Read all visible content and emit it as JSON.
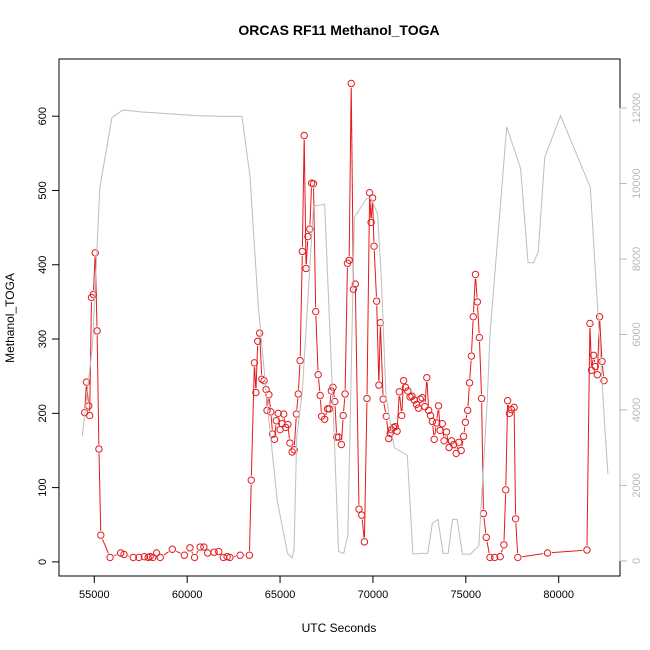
{
  "chart_data": {
    "type": "line",
    "title": "ORCAS RF11 Methanol_TOGA",
    "xlabel": "UTC Seconds",
    "ylabel": "Methanol_TOGA",
    "xlim": [
      53100,
      83300
    ],
    "ylim": [
      -19,
      677
    ],
    "y2lim": [
      -400,
      13300
    ],
    "x_ticks": [
      55000,
      60000,
      65000,
      70000,
      75000,
      80000
    ],
    "y_ticks": [
      0,
      100,
      200,
      300,
      400,
      500,
      600
    ],
    "y2_ticks": [
      0,
      2000,
      4000,
      6000,
      8000,
      10000,
      12000
    ],
    "x_tick_labels": [
      "55000",
      "60000",
      "65000",
      "70000",
      "75000",
      "80000"
    ],
    "y_tick_labels": [
      "0",
      "100",
      "200",
      "300",
      "400",
      "500",
      "600"
    ],
    "y2_tick_labels": [
      "0",
      "2000",
      "4000",
      "6000",
      "8000",
      "10000",
      "12000"
    ],
    "grid": false,
    "series": [
      {
        "color": "#e31a1c",
        "axis": "left",
        "style": "line+circles",
        "points": [
          [
            54480,
            201
          ],
          [
            54580,
            242
          ],
          [
            54700,
            210
          ],
          [
            54750,
            197
          ],
          [
            54850,
            356
          ],
          [
            54950,
            360
          ],
          [
            55050,
            416
          ],
          [
            55150,
            311
          ],
          [
            55250,
            152
          ],
          [
            55350,
            36
          ],
          [
            55850,
            6
          ],
          [
            56420,
            12
          ],
          [
            56600,
            10
          ],
          [
            57100,
            6
          ],
          [
            57400,
            6
          ],
          [
            57700,
            7
          ],
          [
            57900,
            6
          ],
          [
            58000,
            7
          ],
          [
            58150,
            6
          ],
          [
            58350,
            12
          ],
          [
            58550,
            6
          ],
          [
            59200,
            17
          ],
          [
            59850,
            9
          ],
          [
            60150,
            19
          ],
          [
            60400,
            6
          ],
          [
            60700,
            20
          ],
          [
            60900,
            20
          ],
          [
            61100,
            12
          ],
          [
            61450,
            13
          ],
          [
            61700,
            14
          ],
          [
            61950,
            6
          ],
          [
            62150,
            7
          ],
          [
            62300,
            6
          ],
          [
            62850,
            9
          ],
          [
            63350,
            9
          ],
          [
            63450,
            110
          ],
          [
            63620,
            268
          ],
          [
            63700,
            228
          ],
          [
            63800,
            297
          ],
          [
            63900,
            308
          ],
          [
            64020,
            246
          ],
          [
            64140,
            244
          ],
          [
            64250,
            232
          ],
          [
            64300,
            204
          ],
          [
            64400,
            225
          ],
          [
            64500,
            202
          ],
          [
            64600,
            172
          ],
          [
            64700,
            165
          ],
          [
            64800,
            190
          ],
          [
            64900,
            200
          ],
          [
            65000,
            178
          ],
          [
            65100,
            186
          ],
          [
            65200,
            199
          ],
          [
            65300,
            181
          ],
          [
            65420,
            185
          ],
          [
            65530,
            160
          ],
          [
            65650,
            148
          ],
          [
            65760,
            151
          ],
          [
            65880,
            199
          ],
          [
            65980,
            226
          ],
          [
            66080,
            271
          ],
          [
            66200,
            418
          ],
          [
            66300,
            574
          ],
          [
            66400,
            395
          ],
          [
            66500,
            438
          ],
          [
            66600,
            448
          ],
          [
            66700,
            510
          ],
          [
            66800,
            509
          ],
          [
            66920,
            337
          ],
          [
            67050,
            252
          ],
          [
            67160,
            224
          ],
          [
            67240,
            196
          ],
          [
            67400,
            192
          ],
          [
            67560,
            206
          ],
          [
            67650,
            206
          ],
          [
            67760,
            230
          ],
          [
            67850,
            235
          ],
          [
            67950,
            216
          ],
          [
            68050,
            168
          ],
          [
            68150,
            168
          ],
          [
            68300,
            158
          ],
          [
            68400,
            197
          ],
          [
            68500,
            226
          ],
          [
            68630,
            402
          ],
          [
            68720,
            406
          ],
          [
            68830,
            644
          ],
          [
            68950,
            367
          ],
          [
            69050,
            374
          ],
          [
            69250,
            71
          ],
          [
            69400,
            63
          ],
          [
            69540,
            27
          ],
          [
            69680,
            220
          ],
          [
            69820,
            497
          ],
          [
            69900,
            457
          ],
          [
            69980,
            490
          ],
          [
            70060,
            425
          ],
          [
            70200,
            351
          ],
          [
            70320,
            238
          ],
          [
            70400,
            322
          ],
          [
            70550,
            219
          ],
          [
            70720,
            196
          ],
          [
            70850,
            166
          ],
          [
            70930,
            173
          ],
          [
            71000,
            178
          ],
          [
            71100,
            181
          ],
          [
            71200,
            182
          ],
          [
            71300,
            176
          ],
          [
            71420,
            229
          ],
          [
            71550,
            197
          ],
          [
            71650,
            244
          ],
          [
            71750,
            235
          ],
          [
            71880,
            230
          ],
          [
            72000,
            222
          ],
          [
            72100,
            223
          ],
          [
            72230,
            218
          ],
          [
            72350,
            212
          ],
          [
            72450,
            207
          ],
          [
            72550,
            219
          ],
          [
            72650,
            221
          ],
          [
            72800,
            209
          ],
          [
            72900,
            248
          ],
          [
            73000,
            204
          ],
          [
            73100,
            197
          ],
          [
            73200,
            189
          ],
          [
            73300,
            165
          ],
          [
            73420,
            187
          ],
          [
            73530,
            210
          ],
          [
            73620,
            177
          ],
          [
            73730,
            186
          ],
          [
            73830,
            163
          ],
          [
            73960,
            175
          ],
          [
            74100,
            154
          ],
          [
            74230,
            163
          ],
          [
            74350,
            158
          ],
          [
            74480,
            146
          ],
          [
            74620,
            161
          ],
          [
            74750,
            150
          ],
          [
            74880,
            169
          ],
          [
            74980,
            188
          ],
          [
            75100,
            204
          ],
          [
            75200,
            241
          ],
          [
            75300,
            277
          ],
          [
            75400,
            330
          ],
          [
            75520,
            387
          ],
          [
            75620,
            350
          ],
          [
            75730,
            302
          ],
          [
            75850,
            220
          ],
          [
            75950,
            65
          ],
          [
            76100,
            33
          ],
          [
            76300,
            6
          ],
          [
            76550,
            6
          ],
          [
            76850,
            7
          ],
          [
            77050,
            23
          ],
          [
            77150,
            97
          ],
          [
            77250,
            217
          ],
          [
            77350,
            200
          ],
          [
            77450,
            205
          ],
          [
            77600,
            208
          ],
          [
            77680,
            58
          ],
          [
            77800,
            6
          ],
          [
            79400,
            12
          ],
          [
            81520,
            16
          ],
          [
            81680,
            321
          ],
          [
            81770,
            258
          ],
          [
            81880,
            278
          ],
          [
            81970,
            263
          ],
          [
            82080,
            252
          ],
          [
            82200,
            330
          ],
          [
            82330,
            270
          ],
          [
            82440,
            244
          ]
        ]
      },
      {
        "color": "#bebebe",
        "axis": "right",
        "style": "line",
        "points": [
          [
            54350,
            3300
          ],
          [
            54900,
            5700
          ],
          [
            55300,
            9900
          ],
          [
            55950,
            11750
          ],
          [
            56550,
            11950
          ],
          [
            57500,
            11900
          ],
          [
            59000,
            11850
          ],
          [
            60500,
            11800
          ],
          [
            62000,
            11780
          ],
          [
            62950,
            11780
          ],
          [
            63380,
            10200
          ],
          [
            63820,
            6800
          ],
          [
            64300,
            4200
          ],
          [
            64850,
            1600
          ],
          [
            65400,
            200
          ],
          [
            65650,
            80
          ],
          [
            65750,
            300
          ],
          [
            65900,
            3300
          ],
          [
            66200,
            4500
          ],
          [
            66800,
            9400
          ],
          [
            67400,
            9450
          ],
          [
            67900,
            3500
          ],
          [
            68150,
            250
          ],
          [
            68430,
            200
          ],
          [
            68650,
            700
          ],
          [
            69000,
            9100
          ],
          [
            69650,
            9600
          ],
          [
            69900,
            9600
          ],
          [
            70250,
            9200
          ],
          [
            70450,
            7500
          ],
          [
            70700,
            4400
          ],
          [
            71150,
            3000
          ],
          [
            71850,
            2800
          ],
          [
            72150,
            180
          ],
          [
            72600,
            200
          ],
          [
            72950,
            200
          ],
          [
            73200,
            1000
          ],
          [
            73500,
            1100
          ],
          [
            73780,
            200
          ],
          [
            74050,
            200
          ],
          [
            74280,
            1100
          ],
          [
            74530,
            1100
          ],
          [
            74820,
            180
          ],
          [
            75250,
            180
          ],
          [
            75700,
            400
          ],
          [
            76150,
            4200
          ],
          [
            76300,
            6000
          ],
          [
            77200,
            11500
          ],
          [
            77950,
            10400
          ],
          [
            78350,
            7900
          ],
          [
            78650,
            7900
          ],
          [
            78900,
            8200
          ],
          [
            79250,
            10700
          ],
          [
            80100,
            11800
          ],
          [
            81700,
            9900
          ],
          [
            82500,
            3400
          ],
          [
            82650,
            2300
          ]
        ]
      }
    ]
  }
}
